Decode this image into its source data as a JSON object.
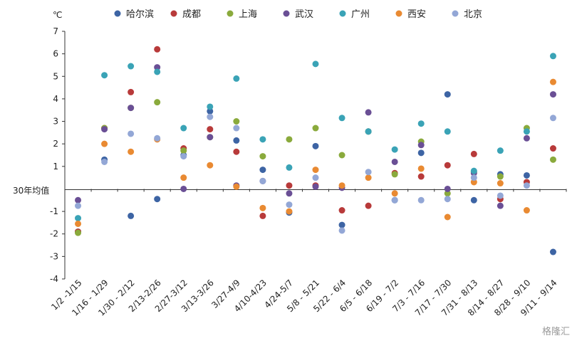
{
  "chart_data": {
    "type": "scatter",
    "unit_label": "℃",
    "baseline_label": "30年均值",
    "ylim": [
      -4,
      7
    ],
    "yticks": [
      7,
      6,
      5,
      4,
      3,
      2,
      1,
      -1,
      -2,
      -3,
      -4
    ],
    "categories": [
      "1/2 -1/15",
      "1/16 - 1/29",
      "1/30 - 2/12",
      "2/13-2/26",
      "2/27-3/12",
      "3/13-3/26",
      "3/27-4/9",
      "4/10-4/23",
      "4/24-5/7",
      "5/8 - 5/21",
      "5/22 - 6/4",
      "6/5 - 6/18",
      "6/19 - 7/2",
      "7/3 - 7/16",
      "7/17 - 7/30",
      "7/31 - 8/13",
      "8/14 - 8/27",
      "8/28 - 9/10",
      "9/11 - 9/14"
    ],
    "legend_position": "top",
    "series": [
      {
        "name": "哈尔滨",
        "color": "#3d64a4",
        "values": [
          -1.9,
          1.3,
          -1.2,
          -0.45,
          1.5,
          3.45,
          2.15,
          0.85,
          -1.05,
          1.9,
          -1.6,
          2.55,
          -0.5,
          1.6,
          4.2,
          -0.5,
          0.65,
          0.6,
          -2.8
        ]
      },
      {
        "name": "成都",
        "color": "#b83a3a",
        "values": [
          -1.9,
          2.7,
          4.3,
          6.2,
          1.8,
          2.65,
          1.65,
          -1.2,
          0.15,
          0.15,
          -0.95,
          -0.75,
          0.7,
          0.55,
          1.05,
          1.55,
          -0.45,
          0.3,
          1.8
        ]
      },
      {
        "name": "上海",
        "color": "#8aaa3c",
        "values": [
          -1.95,
          2.7,
          3.6,
          3.85,
          1.7,
          2.3,
          3.0,
          1.45,
          2.2,
          2.7,
          1.5,
          2.55,
          0.65,
          2.1,
          -0.2,
          0.75,
          0.55,
          2.7,
          1.3
        ]
      },
      {
        "name": "武汉",
        "color": "#6a4f95",
        "values": [
          -0.5,
          2.65,
          3.6,
          5.4,
          0.0,
          2.3,
          0.15,
          0.35,
          -0.2,
          0.1,
          0.05,
          3.4,
          1.2,
          1.95,
          0.0,
          0.7,
          -0.75,
          2.25,
          4.2
        ]
      },
      {
        "name": "广州",
        "color": "#3aa3b6",
        "values": [
          -1.3,
          5.05,
          5.45,
          5.2,
          2.7,
          3.65,
          4.9,
          2.2,
          0.95,
          5.55,
          3.15,
          2.55,
          1.75,
          2.9,
          2.55,
          0.8,
          1.7,
          2.55,
          5.9
        ]
      },
      {
        "name": "西安",
        "color": "#e98a32",
        "values": [
          -1.55,
          2.0,
          1.65,
          2.2,
          0.5,
          1.05,
          0.1,
          -0.85,
          -1.0,
          0.85,
          0.15,
          0.5,
          -0.2,
          0.9,
          -1.25,
          0.3,
          0.25,
          -0.95,
          4.75
        ]
      },
      {
        "name": "北京",
        "color": "#93a7d6",
        "values": [
          -0.75,
          1.2,
          2.45,
          2.25,
          1.45,
          3.2,
          2.7,
          0.35,
          -0.7,
          0.5,
          -1.85,
          0.75,
          -0.5,
          -0.5,
          -0.45,
          0.5,
          -0.3,
          0.15,
          3.15
        ]
      }
    ]
  },
  "watermark": "格隆汇"
}
